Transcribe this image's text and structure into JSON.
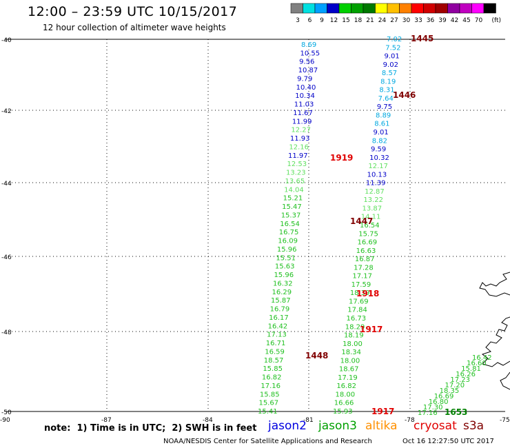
{
  "header": {
    "title": "12:00 – 23:59 UTC 10/15/2017",
    "subtitle": "12 hour collection of altimeter wave heights"
  },
  "legend": {
    "unit": "(ft)",
    "bins": [
      {
        "label": "3",
        "color": "#808080"
      },
      {
        "label": "6",
        "color": "#00e0e0"
      },
      {
        "label": "9",
        "color": "#00a0ff"
      },
      {
        "label": "12",
        "color": "#0000c8"
      },
      {
        "label": "15",
        "color": "#00d000"
      },
      {
        "label": "18",
        "color": "#00a000"
      },
      {
        "label": "21",
        "color": "#007800"
      },
      {
        "label": "24",
        "color": "#ffff00"
      },
      {
        "label": "27",
        "color": "#ffc000"
      },
      {
        "label": "30",
        "color": "#ff8000"
      },
      {
        "label": "33",
        "color": "#ff0000"
      },
      {
        "label": "36",
        "color": "#d00000"
      },
      {
        "label": "39",
        "color": "#a00000"
      },
      {
        "label": "42",
        "color": "#9000a0"
      },
      {
        "label": "45",
        "color": "#c000c0"
      },
      {
        "label": "70",
        "color": "#ff00ff"
      },
      {
        "label": "",
        "color": "#000000"
      }
    ]
  },
  "axes": {
    "lat_labels": [
      "-40",
      "-42",
      "-44",
      "-46",
      "-48",
      "-50"
    ],
    "lon_labels": [
      "-90",
      "-87",
      "-84",
      "-81",
      "-78",
      "-75"
    ]
  },
  "tracks": {
    "colors": {
      "t12": "#0000c8",
      "t9": "#00a8e0",
      "t15": "#20c020",
      "t15l": "#60e060",
      "t18": "#00a000"
    },
    "track_a": [
      {
        "v": "8.69",
        "c": "t9"
      },
      {
        "v": "10.55",
        "c": "t12"
      },
      {
        "v": "9.56",
        "c": "t12"
      },
      {
        "v": "10.87",
        "c": "t12"
      },
      {
        "v": "9.79",
        "c": "t12"
      },
      {
        "v": "10.40",
        "c": "t12"
      },
      {
        "v": "10.34",
        "c": "t12"
      },
      {
        "v": "11.03",
        "c": "t12"
      },
      {
        "v": "11.67",
        "c": "t12"
      },
      {
        "v": "11.99",
        "c": "t12"
      },
      {
        "v": "12.27",
        "c": "t15l"
      },
      {
        "v": "11.93",
        "c": "t12"
      },
      {
        "v": "12.16",
        "c": "t15l"
      },
      {
        "v": "11.97",
        "c": "t12"
      },
      {
        "v": "12.53",
        "c": "t15l"
      },
      {
        "v": "13.23",
        "c": "t15l"
      },
      {
        "v": "13.65",
        "c": "t15l"
      },
      {
        "v": "14.04",
        "c": "t15l"
      },
      {
        "v": "15.21",
        "c": "t15"
      },
      {
        "v": "15.47",
        "c": "t15"
      },
      {
        "v": "15.37",
        "c": "t15"
      },
      {
        "v": "16.54",
        "c": "t15"
      },
      {
        "v": "16.75",
        "c": "t15"
      },
      {
        "v": "16.09",
        "c": "t15"
      },
      {
        "v": "15.96",
        "c": "t15"
      },
      {
        "v": "15.51",
        "c": "t15"
      },
      {
        "v": "15.63",
        "c": "t15"
      },
      {
        "v": "15.96",
        "c": "t15"
      },
      {
        "v": "16.32",
        "c": "t15"
      },
      {
        "v": "16.29",
        "c": "t15"
      },
      {
        "v": "15.87",
        "c": "t15"
      },
      {
        "v": "16.79",
        "c": "t15"
      },
      {
        "v": "16.17",
        "c": "t15"
      },
      {
        "v": "16.42",
        "c": "t15"
      },
      {
        "v": "17.13",
        "c": "t15"
      },
      {
        "v": "16.71",
        "c": "t15"
      },
      {
        "v": "16.59",
        "c": "t15"
      },
      {
        "v": "18.57",
        "c": "t15"
      },
      {
        "v": "15.85",
        "c": "t15"
      },
      {
        "v": "16.82",
        "c": "t15"
      },
      {
        "v": "17.16",
        "c": "t15"
      },
      {
        "v": "15.85",
        "c": "t15"
      },
      {
        "v": "15.67",
        "c": "t15"
      },
      {
        "v": "15.41",
        "c": "t15"
      }
    ],
    "track_b": [
      {
        "v": "7.02",
        "c": "t9"
      },
      {
        "v": "7.52",
        "c": "t9"
      },
      {
        "v": "9.01",
        "c": "t12"
      },
      {
        "v": "9.02",
        "c": "t12"
      },
      {
        "v": "8.57",
        "c": "t9"
      },
      {
        "v": "8.19",
        "c": "t9"
      },
      {
        "v": "8.31",
        "c": "t9"
      },
      {
        "v": "7.64",
        "c": "t9"
      },
      {
        "v": "9.75",
        "c": "t12"
      },
      {
        "v": "8.89",
        "c": "t9"
      },
      {
        "v": "8.61",
        "c": "t9"
      },
      {
        "v": "9.01",
        "c": "t12"
      },
      {
        "v": "8.82",
        "c": "t9"
      },
      {
        "v": "9.59",
        "c": "t12"
      },
      {
        "v": "10.32",
        "c": "t12"
      },
      {
        "v": "12.17",
        "c": "t15l"
      },
      {
        "v": "10.13",
        "c": "t12"
      },
      {
        "v": "11.39",
        "c": "t12"
      },
      {
        "v": "12.87",
        "c": "t15l"
      },
      {
        "v": "13.22",
        "c": "t15l"
      },
      {
        "v": "13.87",
        "c": "t15l"
      },
      {
        "v": "14.11",
        "c": "t15l"
      },
      {
        "v": "16.54",
        "c": "t15"
      },
      {
        "v": "15.75",
        "c": "t15"
      },
      {
        "v": "16.69",
        "c": "t15"
      },
      {
        "v": "16.63",
        "c": "t15"
      },
      {
        "v": "16.87",
        "c": "t15"
      },
      {
        "v": "17.28",
        "c": "t15"
      },
      {
        "v": "17.17",
        "c": "t15"
      },
      {
        "v": "17.59",
        "c": "t15"
      },
      {
        "v": "18.39",
        "c": "t15"
      },
      {
        "v": "17.69",
        "c": "t15"
      },
      {
        "v": "17.84",
        "c": "t15"
      },
      {
        "v": "16.73",
        "c": "t15"
      },
      {
        "v": "18.29",
        "c": "t15"
      },
      {
        "v": "18.19",
        "c": "t15"
      },
      {
        "v": "18.00",
        "c": "t15"
      },
      {
        "v": "18.34",
        "c": "t15"
      },
      {
        "v": "18.00",
        "c": "t15"
      },
      {
        "v": "18.67",
        "c": "t15"
      },
      {
        "v": "17.19",
        "c": "t15"
      },
      {
        "v": "16.82",
        "c": "t15"
      },
      {
        "v": "18.00",
        "c": "t15"
      },
      {
        "v": "16.66",
        "c": "t15"
      },
      {
        "v": "15.93",
        "c": "t15"
      }
    ],
    "track_c": [
      {
        "v": "16.42",
        "c": "t15"
      },
      {
        "v": "16.60",
        "c": "t15"
      },
      {
        "v": "15.81",
        "c": "t15"
      },
      {
        "v": "16.26",
        "c": "t15"
      },
      {
        "v": "17.23",
        "c": "t15"
      },
      {
        "v": "17.20",
        "c": "t15"
      },
      {
        "v": "18.35",
        "c": "t15"
      },
      {
        "v": "16.69",
        "c": "t15"
      },
      {
        "v": "16.80",
        "c": "t15"
      },
      {
        "v": "17.30",
        "c": "t15"
      },
      {
        "v": "17.16",
        "c": "t15"
      }
    ],
    "time_labels": [
      {
        "t": "1445",
        "color": "#800000"
      },
      {
        "t": "1446",
        "color": "#800000"
      },
      {
        "t": "1919",
        "color": "#e00000"
      },
      {
        "t": "1447",
        "color": "#800000"
      },
      {
        "t": "1918",
        "color": "#e00000"
      },
      {
        "t": "1917",
        "color": "#e00000"
      },
      {
        "t": "1448",
        "color": "#800000"
      },
      {
        "t": "1917",
        "color": "#e00000"
      },
      {
        "t": "1653",
        "color": "#008000"
      }
    ]
  },
  "footer": {
    "note": "note:  1) Time is in UTC;  2) SWH is in feet",
    "missions": [
      {
        "name": "jason2",
        "color": "#0000e0"
      },
      {
        "name": "jason3",
        "color": "#00a000"
      },
      {
        "name": "altika",
        "color": "#ff9000"
      },
      {
        "name": "cryosat",
        "color": "#e00000"
      },
      {
        "name": "s3a",
        "color": "#800000"
      }
    ],
    "credit": "NOAA/NESDIS Center for Satellite Applications and Research",
    "timestamp": "Oct 16 12:27:50 UTC 2017"
  }
}
